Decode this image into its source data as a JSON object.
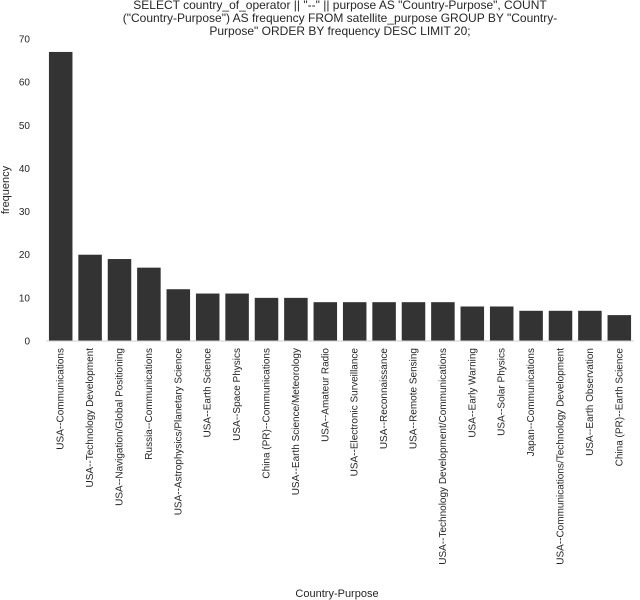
{
  "chart_data": {
    "type": "bar",
    "title_lines": [
      "SELECT country_of_operator || \"--\" || purpose AS \"Country-Purpose\",  COUNT",
      "(\"Country-Purpose\") AS frequency FROM satellite_purpose GROUP BY \"Country-",
      "Purpose\" ORDER BY frequency DESC LIMIT 20;"
    ],
    "xlabel": "Country-Purpose",
    "ylabel": "frequency",
    "ylim": [
      0,
      70
    ],
    "yticks": [
      0,
      10,
      20,
      30,
      40,
      50,
      60,
      70
    ],
    "grid": false,
    "bar_color": "#333333",
    "categories": [
      "USA--Communications",
      "USA--Technology Development",
      "USA--Navigation/Global Positioning",
      "Russia--Communications",
      "USA--Astrophysics/Planetary Science",
      "USA--Earth Science",
      "USA--Space Physics",
      "China (PR)--Communications",
      "USA--Earth Science/Meteorology",
      "USA--Amateur Radio",
      "USA--Electronic Surveillance",
      "USA--Reconnaissance",
      "USA--Remote Sensing",
      "USA--Technology Development/Communications",
      "USA--Early Warning",
      "USA--Solar Physics",
      "Japan--Communications",
      "USA--Communications/Technology Development",
      "USA--Earth Observation",
      "China (PR)--Earth Science"
    ],
    "values": [
      67,
      20,
      19,
      17,
      12,
      11,
      11,
      10,
      10,
      9,
      9,
      9,
      9,
      9,
      8,
      8,
      7,
      7,
      7,
      6
    ]
  }
}
